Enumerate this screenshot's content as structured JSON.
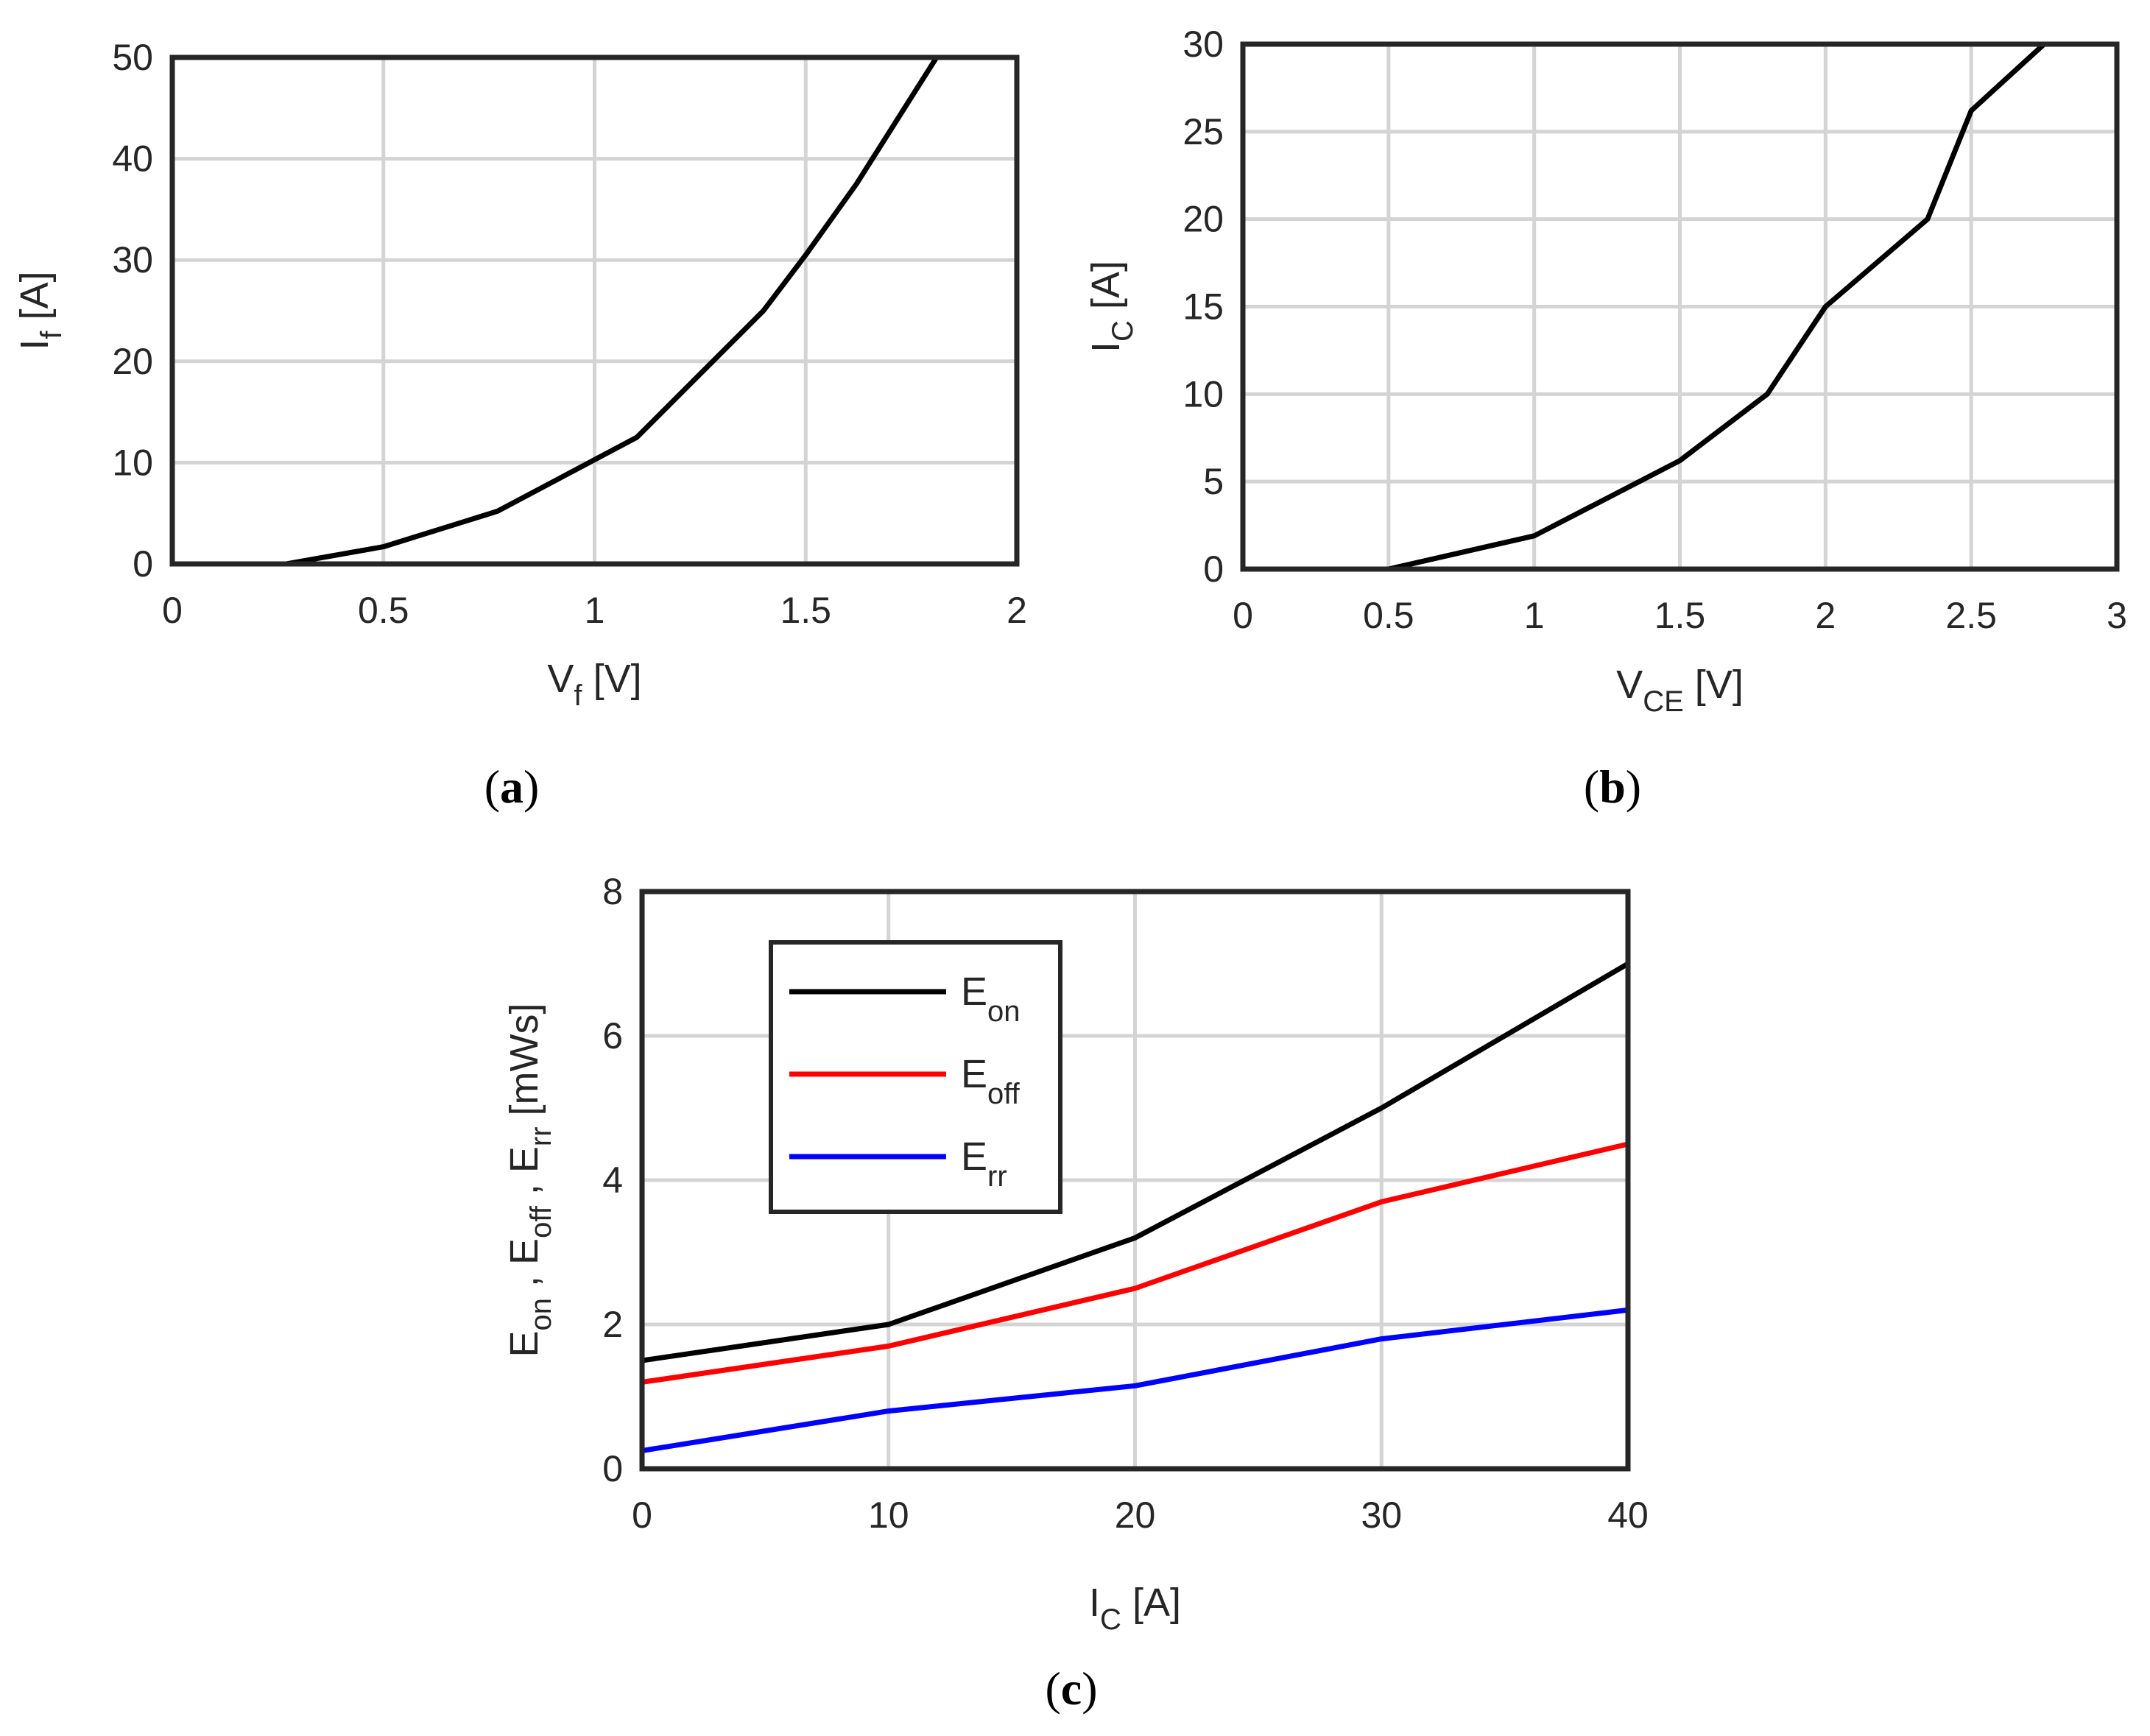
{
  "chart_data": [
    {
      "id": "a",
      "type": "line",
      "panel_label": "a",
      "xlabel": {
        "main": "V",
        "sub": "f",
        "unit": "[V]"
      },
      "ylabel": {
        "main": "I",
        "sub": "f",
        "unit": "[A]"
      },
      "xlim": [
        0,
        2
      ],
      "ylim": [
        0,
        50
      ],
      "xticks": [
        0,
        0.5,
        1,
        1.5,
        2
      ],
      "xtick_labels": [
        "0",
        "0.5",
        "1",
        "1.5",
        "2"
      ],
      "yticks": [
        0,
        10,
        20,
        30,
        40,
        50
      ],
      "ytick_labels": [
        "0",
        "10",
        "20",
        "30",
        "40",
        "50"
      ],
      "grid": true,
      "series": [
        {
          "name": "If",
          "color": "#000000",
          "x": [
            0,
            0.27,
            0.5,
            0.77,
            1.1,
            1.4,
            1.5,
            1.62,
            1.81
          ],
          "y": [
            0,
            0,
            1.7,
            5.2,
            12.5,
            25,
            30.5,
            37.5,
            50
          ]
        }
      ]
    },
    {
      "id": "b",
      "type": "line",
      "panel_label": "b",
      "xlabel": {
        "main": "V",
        "sub": "CE",
        "unit": "[V]"
      },
      "ylabel": {
        "main": "I",
        "sub": "C",
        "unit": "[A]"
      },
      "xlim": [
        0,
        3
      ],
      "ylim": [
        0,
        30
      ],
      "xticks": [
        0,
        0.5,
        1,
        1.5,
        2,
        2.5,
        3
      ],
      "xtick_labels": [
        "0",
        "0.5",
        "1",
        "1.5",
        "2",
        "2.5",
        "3"
      ],
      "yticks": [
        0,
        5,
        10,
        15,
        20,
        25,
        30
      ],
      "ytick_labels": [
        "0",
        "5",
        "10",
        "15",
        "20",
        "25",
        "30"
      ],
      "grid": true,
      "series": [
        {
          "name": "IC",
          "color": "#000000",
          "x": [
            0,
            0.5,
            1,
            1.5,
            1.8,
            2,
            2.35,
            2.5,
            2.75
          ],
          "y": [
            0,
            0,
            1.9,
            6.2,
            10,
            15,
            20,
            26.2,
            30
          ]
        }
      ]
    },
    {
      "id": "c",
      "type": "line",
      "panel_label": "c",
      "xlabel": {
        "main": "I",
        "sub": "C",
        "unit": "[A]"
      },
      "ylabel": {
        "parts": [
          {
            "main": "E",
            "sub": "on"
          },
          {
            "main": ",  E",
            "sub": "off"
          },
          {
            "main": ",  E",
            "sub": "rr"
          }
        ],
        "unit": "[mWs]"
      },
      "xlim": [
        0,
        40
      ],
      "ylim": [
        0,
        8
      ],
      "xticks": [
        0,
        10,
        20,
        30,
        40
      ],
      "xtick_labels": [
        "0",
        "10",
        "20",
        "30",
        "40"
      ],
      "yticks": [
        0,
        2,
        4,
        6,
        8
      ],
      "ytick_labels": [
        "0",
        "2",
        "4",
        "6",
        "8"
      ],
      "grid": true,
      "legend_position": "top-left",
      "series": [
        {
          "name": "Eon",
          "label_main": "E",
          "label_sub": "on",
          "color": "#000000",
          "x": [
            0,
            10,
            20,
            30,
            40
          ],
          "y": [
            1.5,
            2.0,
            3.2,
            5.0,
            7.0
          ]
        },
        {
          "name": "Eoff",
          "label_main": "E",
          "label_sub": "off",
          "color": "#ff0000",
          "x": [
            0,
            10,
            20,
            30,
            40
          ],
          "y": [
            1.2,
            1.7,
            2.5,
            3.7,
            4.5
          ]
        },
        {
          "name": "Err",
          "label_main": "E",
          "label_sub": "rr",
          "color": "#0000ff",
          "x": [
            0,
            10,
            20,
            30,
            40
          ],
          "y": [
            0.25,
            0.8,
            1.15,
            1.8,
            2.2
          ]
        }
      ]
    }
  ]
}
